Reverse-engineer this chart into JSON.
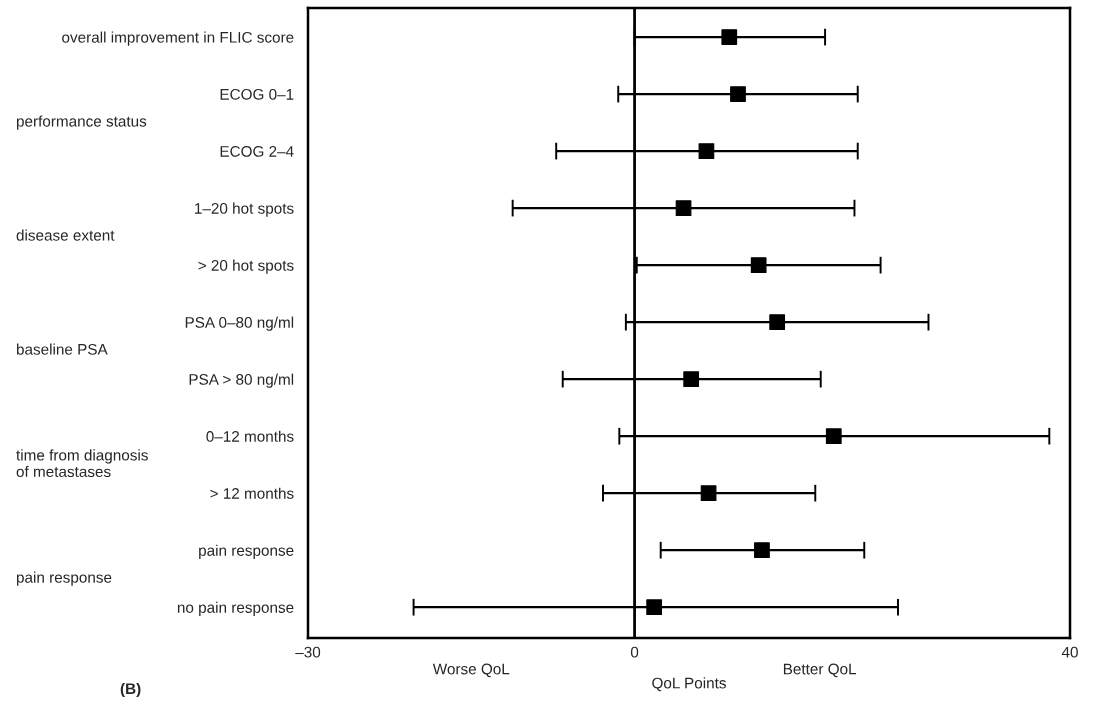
{
  "chart_data": {
    "type": "scatter",
    "orientation": "horizontal",
    "categories": [
      "overall improvement in FLIC score",
      "ECOG 0–1",
      "ECOG 2–4",
      "1–20 hot spots",
      "> 20 hot spots",
      "PSA 0–80 ng/ml",
      "PSA > 80 ng/ml",
      "0–12 months",
      "> 12 months",
      "pain response",
      "no pain response"
    ],
    "series": [
      {
        "color": "#000000",
        "values": [
          8.7,
          9.5,
          6.6,
          4.5,
          11.4,
          13.1,
          5.2,
          18.3,
          6.8,
          11.7,
          1.8
        ],
        "errors": [
          [
            0,
            17.5
          ],
          [
            -1.5,
            20.5
          ],
          [
            -7.2,
            20.5
          ],
          [
            -11.2,
            20.2
          ],
          [
            0.2,
            22.6
          ],
          [
            -0.8,
            27
          ],
          [
            -6.6,
            17.1
          ],
          [
            -1.4,
            38.1
          ],
          [
            -2.9,
            16.6
          ],
          [
            2.4,
            21.1
          ],
          [
            -20.3,
            24.2
          ]
        ]
      }
    ],
    "xlim": [
      -30,
      40
    ],
    "xticks": [
      {
        "value": -30,
        "label": "–30"
      },
      0,
      40
    ],
    "xlabel": "QoL Points",
    "marker": "square",
    "grid": false,
    "legend": false,
    "ref_lines": [
      {
        "axis": "x",
        "value": 0,
        "color": "#000000"
      }
    ],
    "annotations": [
      "performance status",
      "disease extent",
      "baseline PSA",
      "time from diagnosis\nof metastases",
      "pain response",
      "Worse QoL",
      "Better QoL",
      "(B)"
    ]
  }
}
